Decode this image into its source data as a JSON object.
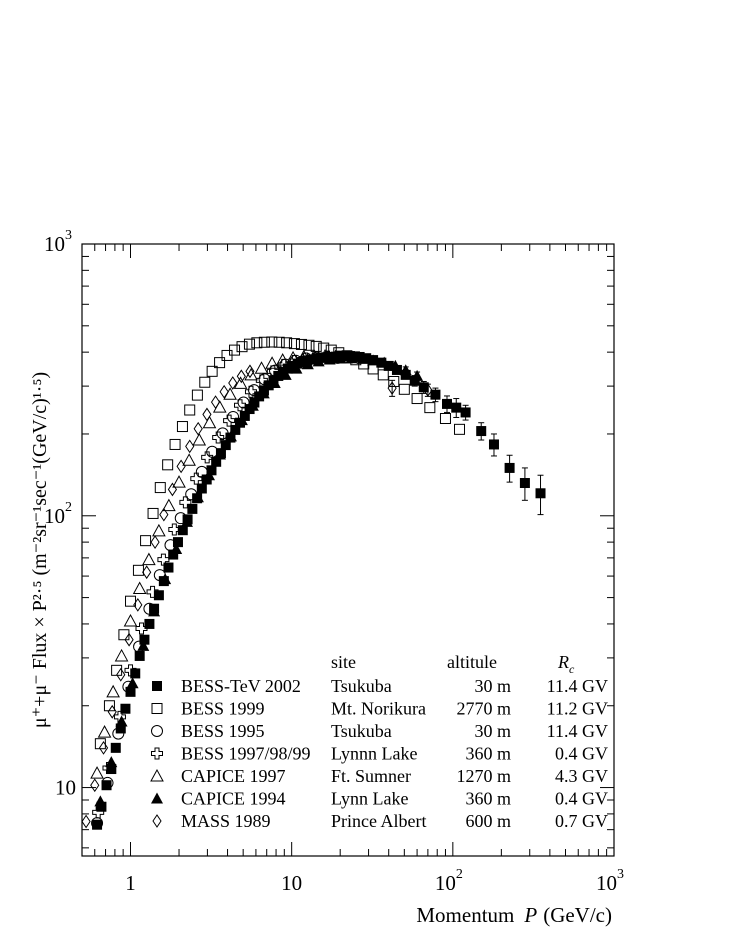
{
  "chart_data": {
    "type": "scatter",
    "title": "",
    "xscale": "log",
    "yscale": "log",
    "xlim": [
      0.5,
      1000
    ],
    "ylim": [
      5.6,
      1000
    ],
    "x_ticks": [
      {
        "v": 1,
        "base": "1",
        "exp": ""
      },
      {
        "v": 10,
        "base": "10",
        "exp": ""
      },
      {
        "v": 100,
        "base": "10",
        "exp": "2"
      },
      {
        "v": 1000,
        "base": "10",
        "exp": "3"
      }
    ],
    "y_ticks": [
      {
        "v": 10,
        "base": "10",
        "exp": ""
      },
      {
        "v": 100,
        "base": "10",
        "exp": "2"
      },
      {
        "v": 1000,
        "base": "10",
        "exp": "3"
      }
    ],
    "xlabel_text": "Momentum",
    "xlabel_var": "P",
    "xlabel_unit": "(GeV/c)",
    "ylabel_text": "μ⁺+μ⁻ Flux × P²·⁵ (m⁻²sr⁻¹sec⁻¹(GeV/c)¹·⁵)",
    "legend": {
      "placement": "bottom-right",
      "header_site": "site",
      "header_altitude": "altitule",
      "header_rc": "Rc"
    },
    "series": [
      {
        "name": "BESS-TeV 2002",
        "site": "Tsukuba",
        "altitude": "30 m",
        "rc": "11.4 GV",
        "marker": "square-filled",
        "points": [
          [
            0.62,
            7.3
          ],
          [
            0.66,
            8.5
          ],
          [
            0.71,
            10.2
          ],
          [
            0.76,
            11.7
          ],
          [
            0.81,
            14
          ],
          [
            0.87,
            16.5
          ],
          [
            0.93,
            19.5
          ],
          [
            1.0,
            22.5
          ],
          [
            1.07,
            26.3
          ],
          [
            1.14,
            30.5
          ],
          [
            1.22,
            35
          ],
          [
            1.31,
            40
          ],
          [
            1.4,
            45.5
          ],
          [
            1.5,
            51
          ],
          [
            1.61,
            57.5
          ],
          [
            1.72,
            64.5
          ],
          [
            1.84,
            72
          ],
          [
            1.97,
            80
          ],
          [
            2.11,
            88.5
          ],
          [
            2.26,
            97
          ],
          [
            2.42,
            106
          ],
          [
            2.59,
            116
          ],
          [
            2.77,
            126
          ],
          [
            2.97,
            136
          ],
          [
            3.18,
            147
          ],
          [
            3.4,
            158
          ],
          [
            3.64,
            170
          ],
          [
            3.9,
            182
          ],
          [
            4.17,
            194
          ],
          [
            4.47,
            207
          ],
          [
            4.78,
            220
          ],
          [
            5.12,
            233
          ],
          [
            5.48,
            247
          ],
          [
            5.87,
            261
          ],
          [
            6.28,
            275
          ],
          [
            6.73,
            289
          ],
          [
            7.2,
            302
          ],
          [
            7.71,
            315
          ],
          [
            8.26,
            327
          ],
          [
            8.84,
            338
          ],
          [
            9.47,
            348
          ],
          [
            10.1,
            356
          ],
          [
            10.9,
            363
          ],
          [
            11.6,
            368
          ],
          [
            12.5,
            373
          ],
          [
            13.3,
            376
          ],
          [
            14.3,
            379
          ],
          [
            15.3,
            381
          ],
          [
            16.4,
            383
          ],
          [
            17.5,
            384
          ],
          [
            18.8,
            385
          ],
          [
            20.1,
            386
          ],
          [
            21.5,
            387
          ],
          [
            23.0,
            387
          ],
          [
            24.7,
            386
          ],
          [
            26.4,
            384
          ],
          [
            29,
            380
          ],
          [
            32,
            374
          ],
          [
            36,
            366
          ],
          [
            40,
            356
          ],
          [
            45,
            344
          ],
          [
            51,
            330
          ],
          [
            58,
            314
          ],
          [
            66,
            297
          ],
          [
            78,
            279
          ],
          [
            92,
            258
          ],
          [
            105,
            250
          ],
          [
            120,
            240
          ],
          [
            150,
            205
          ],
          [
            180,
            183
          ],
          [
            225,
            150
          ],
          [
            280,
            132
          ],
          [
            350,
            121
          ]
        ],
        "err": [
          [
            58,
            314,
            14
          ],
          [
            66,
            297,
            15
          ],
          [
            78,
            279,
            16
          ],
          [
            92,
            258,
            18
          ],
          [
            105,
            250,
            20
          ],
          [
            120,
            240,
            15
          ],
          [
            150,
            205,
            15
          ],
          [
            180,
            183,
            17
          ],
          [
            225,
            150,
            17
          ],
          [
            280,
            132,
            18
          ],
          [
            350,
            121,
            20
          ]
        ]
      },
      {
        "name": "BESS 1999",
        "site": "Mt. Norikura",
        "altitude": "2770 m",
        "rc": "11.2 GV",
        "marker": "square-open",
        "points": [
          [
            0.65,
            14.5
          ],
          [
            0.74,
            20
          ],
          [
            0.82,
            27
          ],
          [
            0.91,
            36.5
          ],
          [
            1.0,
            48.5
          ],
          [
            1.12,
            63
          ],
          [
            1.24,
            81
          ],
          [
            1.38,
            102
          ],
          [
            1.53,
            127
          ],
          [
            1.7,
            154
          ],
          [
            1.89,
            183
          ],
          [
            2.1,
            213
          ],
          [
            2.33,
            245
          ],
          [
            2.6,
            278
          ],
          [
            2.89,
            310
          ],
          [
            3.21,
            340
          ],
          [
            3.57,
            366
          ],
          [
            3.97,
            389
          ],
          [
            4.42,
            407
          ],
          [
            4.92,
            419
          ],
          [
            5.47,
            428
          ],
          [
            6.08,
            433
          ],
          [
            6.77,
            435
          ],
          [
            7.53,
            436
          ],
          [
            8.37,
            435
          ],
          [
            9.3,
            433
          ],
          [
            10.4,
            430
          ],
          [
            11.5,
            427
          ],
          [
            12.8,
            424
          ],
          [
            14.2,
            420
          ],
          [
            15.8,
            414
          ],
          [
            17.6,
            407
          ],
          [
            19.6,
            398
          ],
          [
            22,
            388
          ],
          [
            25,
            375
          ],
          [
            28,
            362
          ],
          [
            32,
            347
          ],
          [
            37,
            330
          ],
          [
            43,
            312
          ],
          [
            50,
            292
          ],
          [
            60,
            270
          ],
          [
            72,
            250
          ],
          [
            90,
            228
          ],
          [
            110,
            208
          ]
        ],
        "err": []
      },
      {
        "name": "BESS 1995",
        "site": "Tsukuba",
        "altitude": "30 m",
        "rc": "11.4 GV",
        "marker": "circle-open",
        "points": [
          [
            0.62,
            7.4
          ],
          [
            0.72,
            10.4
          ],
          [
            0.84,
            15.8
          ],
          [
            0.97,
            23.5
          ],
          [
            1.13,
            33
          ],
          [
            1.31,
            45.5
          ],
          [
            1.52,
            60.5
          ],
          [
            1.77,
            78
          ],
          [
            2.05,
            98
          ],
          [
            2.38,
            120
          ],
          [
            2.77,
            145
          ],
          [
            3.21,
            172
          ],
          [
            3.73,
            201
          ],
          [
            4.33,
            231
          ],
          [
            5.03,
            261
          ],
          [
            5.84,
            290
          ],
          [
            6.79,
            318
          ],
          [
            7.88,
            342
          ],
          [
            9.15,
            360
          ],
          [
            10.6,
            372
          ],
          [
            12.3,
            379
          ],
          [
            14.3,
            382
          ],
          [
            16.6,
            383
          ],
          [
            19.3,
            381
          ]
        ],
        "err": []
      },
      {
        "name": "BESS 1997/98/99",
        "site": "Lynnn Lake",
        "altitude": "360 m",
        "rc": "0.4 GV",
        "marker": "cross-open",
        "points": [
          [
            0.63,
            8.1
          ],
          [
            0.73,
            11.8
          ],
          [
            0.86,
            18.2
          ],
          [
            1.0,
            27
          ],
          [
            1.17,
            38.5
          ],
          [
            1.37,
            52.5
          ],
          [
            1.6,
            69
          ],
          [
            1.87,
            89
          ],
          [
            2.19,
            112
          ],
          [
            2.56,
            137
          ],
          [
            2.99,
            164
          ],
          [
            3.5,
            194
          ],
          [
            4.09,
            224
          ],
          [
            4.78,
            255
          ],
          [
            5.59,
            286
          ],
          [
            6.53,
            315
          ],
          [
            7.64,
            340
          ],
          [
            8.93,
            359
          ],
          [
            10.4,
            371
          ],
          [
            12.2,
            379
          ],
          [
            14.3,
            383
          ],
          [
            16.7,
            385
          ],
          [
            19.5,
            385
          ]
        ],
        "err": []
      },
      {
        "name": "CAPICE 1997",
        "site": "Ft. Sumner",
        "altitude": "1270 m",
        "rc": "4.3 GV",
        "marker": "triangle-open",
        "points": [
          [
            0.62,
            11.3
          ],
          [
            0.69,
            16
          ],
          [
            0.78,
            22.5
          ],
          [
            0.88,
            30.5
          ],
          [
            1.0,
            41
          ],
          [
            1.14,
            54
          ],
          [
            1.3,
            69
          ],
          [
            1.5,
            88
          ],
          [
            1.73,
            109
          ],
          [
            2.0,
            133
          ],
          [
            2.31,
            160
          ],
          [
            2.67,
            190
          ],
          [
            3.09,
            220
          ],
          [
            3.58,
            251
          ],
          [
            4.15,
            280
          ],
          [
            4.82,
            307
          ],
          [
            5.6,
            330
          ],
          [
            6.5,
            349
          ],
          [
            7.56,
            364
          ],
          [
            8.79,
            374
          ],
          [
            10.2,
            381
          ],
          [
            11.9,
            385
          ],
          [
            13.8,
            387
          ],
          [
            16.1,
            387
          ],
          [
            18.7,
            385
          ],
          [
            21.8,
            381
          ]
        ],
        "err": []
      },
      {
        "name": "CAPICE 1994",
        "site": "Lynn Lake",
        "altitude": "360 m",
        "rc": "0.4 GV",
        "marker": "triangle-filled",
        "points": [
          [
            0.65,
            8.9
          ],
          [
            0.76,
            12.4
          ],
          [
            0.88,
            17.5
          ],
          [
            1.03,
            24.2
          ],
          [
            1.2,
            33.2
          ],
          [
            1.4,
            44.5
          ],
          [
            1.64,
            58.5
          ],
          [
            1.92,
            75.5
          ],
          [
            2.24,
            95
          ],
          [
            2.62,
            117
          ],
          [
            3.07,
            141
          ],
          [
            3.59,
            168
          ],
          [
            4.2,
            196
          ],
          [
            4.91,
            225
          ],
          [
            5.74,
            254
          ],
          [
            6.71,
            282
          ],
          [
            7.85,
            308
          ],
          [
            9.18,
            330
          ],
          [
            10.7,
            348
          ],
          [
            12.6,
            361
          ],
          [
            14.7,
            370
          ],
          [
            17.2,
            376
          ],
          [
            20.1,
            379
          ],
          [
            23.5,
            380
          ],
          [
            27.5,
            378
          ],
          [
            32,
            373
          ],
          [
            37.5,
            366
          ],
          [
            44,
            356
          ],
          [
            51,
            343
          ],
          [
            60,
            327
          ]
        ],
        "err": [
          [
            51,
            343,
            10
          ],
          [
            60,
            327,
            11
          ]
        ]
      },
      {
        "name": "MASS 1989",
        "site": "Prince Albert",
        "altitude": "600 m",
        "rc": "0.7 GV",
        "marker": "diamond-open",
        "points": [
          [
            0.53,
            7.5
          ],
          [
            0.6,
            10.2
          ],
          [
            0.68,
            14
          ],
          [
            0.77,
            19
          ],
          [
            0.87,
            26
          ],
          [
            0.98,
            35
          ],
          [
            1.11,
            47
          ],
          [
            1.26,
            62
          ],
          [
            1.42,
            80
          ],
          [
            1.61,
            101
          ],
          [
            1.82,
            125
          ],
          [
            2.06,
            152
          ],
          [
            2.33,
            180
          ],
          [
            2.63,
            209
          ],
          [
            2.98,
            236
          ],
          [
            3.37,
            262
          ],
          [
            3.81,
            286
          ],
          [
            4.31,
            308
          ],
          [
            4.87,
            326
          ],
          [
            5.51,
            340
          ],
          [
            42,
            295
          ],
          [
            70,
            290
          ]
        ],
        "err": [
          [
            42,
            295,
            20
          ],
          [
            70,
            290,
            15
          ]
        ]
      }
    ]
  }
}
